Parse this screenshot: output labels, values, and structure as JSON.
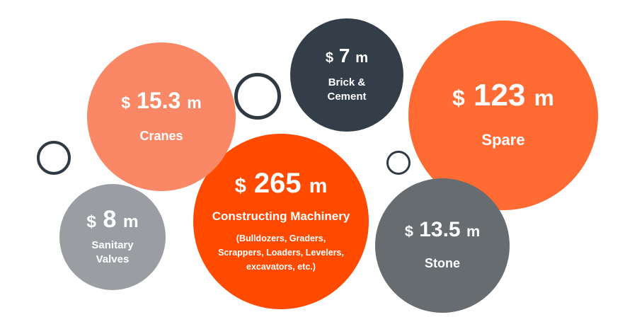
{
  "colors": {
    "salmon": "#fa8866",
    "dark_slate": "#333e48",
    "orange": "#ff6b33",
    "deep_orange": "#ff4a00",
    "light_gray": "#9a9ea3",
    "mid_gray": "#676c71",
    "ring": "#2f3a44"
  },
  "chart_data": {
    "type": "bubble",
    "unit_prefix": "$",
    "unit_suffix": "m",
    "items": [
      {
        "label": "Constructing Machinery",
        "value": 265,
        "value_text": "265",
        "sublabel": [
          "(Bulldozers, Graders,",
          "Scrappers, Loaders, Levelers,",
          "excavators, etc.)"
        ],
        "color": "#ff4a00"
      },
      {
        "label": "Spare",
        "value": 123,
        "value_text": "123",
        "color": "#ff6b33"
      },
      {
        "label": "Cranes",
        "value": 15.3,
        "value_text": "15.3",
        "color": "#fa8866"
      },
      {
        "label": "Stone",
        "value": 13.5,
        "value_text": "13.5",
        "color": "#676c71"
      },
      {
        "label": "Sanitary Valves",
        "label_lines": [
          "Sanitary",
          "Valves"
        ],
        "value": 8,
        "value_text": "8",
        "color": "#9a9ea3"
      },
      {
        "label": "Brick & Cement",
        "label_lines": [
          "Brick &",
          "Cement"
        ],
        "value": 7,
        "value_text": "7",
        "color": "#333e48"
      }
    ]
  }
}
